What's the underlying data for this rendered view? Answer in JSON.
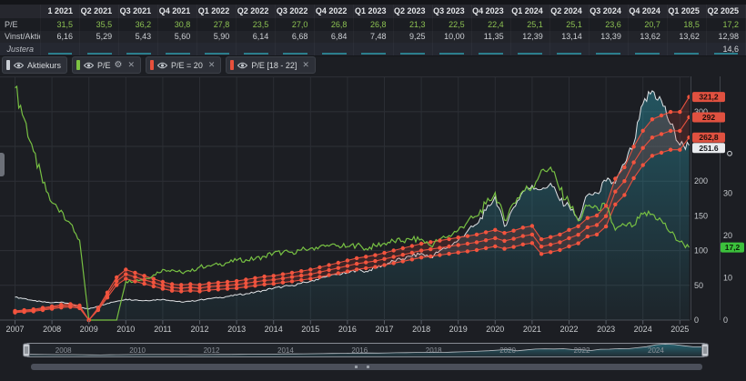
{
  "table": {
    "corner": "",
    "quarters": [
      "1 2021",
      "Q2 2021",
      "Q3 2021",
      "Q4 2021",
      "Q1 2022",
      "Q2 2022",
      "Q3 2022",
      "Q4 2022",
      "Q1 2023",
      "Q2 2023",
      "Q3 2023",
      "Q4 2023",
      "Q1 2024",
      "Q2 2024",
      "Q3 2024",
      "Q4 2024",
      "Q1 2025",
      "Q2 2025"
    ],
    "rows": {
      "pe": {
        "label": "P/E",
        "values": [
          "31,5",
          "35,5",
          "36,2",
          "30,8",
          "27,8",
          "23,5",
          "27,0",
          "26,8",
          "26,8",
          "21,3",
          "22,5",
          "22,4",
          "25,1",
          "25,1",
          "23,6",
          "20,7",
          "18,5",
          "17,2"
        ]
      },
      "vinst": {
        "label": "Vinst/Aktie",
        "values": [
          "6,16",
          "5,29",
          "5,43",
          "5,60",
          "5,90",
          "6,14",
          "6,68",
          "6,84",
          "7,48",
          "9,25",
          "10,00",
          "11,35",
          "12,39",
          "13,14",
          "13,39",
          "13,62",
          "13,62",
          "12,98"
        ]
      },
      "justera": {
        "label": "Justera",
        "values": [
          "",
          "",
          "",
          "",
          "",
          "",
          "",
          "",
          "",
          "",
          "",
          "",
          "",
          "",
          "",
          "",
          "",
          "14,6"
        ]
      }
    }
  },
  "legend": {
    "chips": [
      {
        "label": "Aktiekurs",
        "color": "#c9ced4",
        "eye": true,
        "gear": false,
        "close": false
      },
      {
        "label": "P/E",
        "color": "#7dc242",
        "eye": true,
        "gear": true,
        "close": true
      },
      {
        "label": "P/E = 20",
        "color": "#e8503c",
        "eye": true,
        "gear": false,
        "close": true
      },
      {
        "label": "P/E [18 - 22]",
        "color": "#e8503c",
        "eye": true,
        "gear": false,
        "close": true
      }
    ]
  },
  "chart_data": {
    "type": "line",
    "title": "",
    "x_start": 2007,
    "x_step": 0.25,
    "series": [
      {
        "name": "Aktiekurs",
        "axis": "price",
        "color": "#dfe2e5",
        "values": [
          33,
          31,
          28,
          26,
          25,
          26,
          24,
          18,
          16,
          20,
          24,
          27,
          30,
          29,
          28,
          29,
          30,
          28,
          26,
          27,
          29,
          31,
          32,
          34,
          36,
          38,
          40,
          43,
          46,
          48,
          50,
          53,
          56,
          60,
          63,
          66,
          68,
          72,
          70,
          75,
          80,
          85,
          88,
          92,
          96,
          90,
          100,
          106,
          115,
          128,
          138,
          158,
          178,
          135,
          162,
          185,
          194,
          188,
          197,
          172,
          164,
          144,
          180,
          183,
          200,
          197,
          225,
          254,
          311,
          330,
          316,
          282,
          252,
          251.6
        ]
      },
      {
        "name": "P/E",
        "axis": "pe",
        "color": "#77c043",
        "values": [
          55,
          47.7,
          40,
          32.5,
          27.8,
          26,
          22.9,
          18.9,
          0,
          0,
          0,
          0,
          9.1,
          9.4,
          9.7,
          10.7,
          12,
          11.9,
          11.3,
          11.5,
          12.6,
          12.9,
          13.1,
          13.6,
          14.1,
          14.3,
          14.5,
          15.1,
          15.9,
          16,
          16.1,
          16.6,
          17,
          17.4,
          17.5,
          17.6,
          17.4,
          17.8,
          16.9,
          17.6,
          18.2,
          18.7,
          18.7,
          19,
          19.2,
          17.6,
          19.2,
          20,
          21.3,
          23.3,
          24.6,
          27.5,
          30.2,
          23.7,
          27.7,
          30.6,
          31.5,
          35.5,
          36.2,
          30.8,
          27.8,
          23.5,
          27,
          26.8,
          26.8,
          21.3,
          22.5,
          22.4,
          25.1,
          25.1,
          23.6,
          20.7,
          18.5,
          17.2
        ]
      },
      {
        "name": "Vinst/Aktie TTM",
        "axis": "price",
        "color": "#e5503e",
        "values": [
          0.6,
          0.65,
          0.7,
          0.8,
          0.9,
          1,
          1.05,
          0.95,
          0,
          0.8,
          1.8,
          2.8,
          3.3,
          3.1,
          2.9,
          2.7,
          2.5,
          2.35,
          2.3,
          2.35,
          2.3,
          2.4,
          2.45,
          2.5,
          2.55,
          2.65,
          2.75,
          2.85,
          2.9,
          3,
          3.1,
          3.2,
          3.3,
          3.45,
          3.6,
          3.75,
          3.9,
          4.05,
          4.15,
          4.25,
          4.4,
          4.55,
          4.7,
          4.85,
          5,
          5.1,
          5.2,
          5.3,
          5.4,
          5.5,
          5.6,
          5.75,
          5.9,
          5.7,
          5.85,
          6.05,
          6.16,
          5.29,
          5.43,
          5.6,
          5.9,
          6.14,
          6.68,
          6.84,
          7.48,
          9.25,
          10,
          11.35,
          12.39,
          13.14,
          13.39,
          13.62,
          13.62,
          14.6
        ]
      }
    ],
    "band_multipliers": [
      18,
      20,
      22
    ],
    "axes": {
      "x_ticks": [
        "2007",
        "2008",
        "2009",
        "2010",
        "2011",
        "2012",
        "2013",
        "2014",
        "2015",
        "2016",
        "2017",
        "2018",
        "2019",
        "2020",
        "2021",
        "2022",
        "2023",
        "2024",
        "2025"
      ],
      "price_ticks": [
        "0",
        "50",
        "100",
        "150",
        "200",
        "250",
        "300"
      ],
      "pe_ticks": [
        "0",
        "10",
        "20",
        "30"
      ],
      "price_range": [
        0,
        350.5
      ],
      "pe_range": [
        0,
        57.7
      ],
      "grid": true
    },
    "current_labels": {
      "band": [
        {
          "text": "321,2",
          "value": 321.2
        },
        {
          "text": "292",
          "value": 292
        },
        {
          "text": "262,8",
          "value": 262.8
        }
      ],
      "price": {
        "text": "251.6",
        "value": 251.6
      },
      "pe": {
        "text": "17,2",
        "value": 17.2
      }
    },
    "colors": {
      "price": "#dfe2e5",
      "pe": "#77c043",
      "band": "#e5503e",
      "marker": "#f2543e",
      "area": "#2da0b4",
      "band_fill": "rgba(190,64,54,0.20)",
      "badge_red": "#e05140",
      "badge_green": "#3cc13c",
      "badge_light": "#e9ebee"
    }
  },
  "navigator": {
    "years": [
      "2008",
      "2010",
      "2012",
      "2014",
      "2016",
      "2018",
      "2020",
      "2022",
      "2024"
    ]
  }
}
